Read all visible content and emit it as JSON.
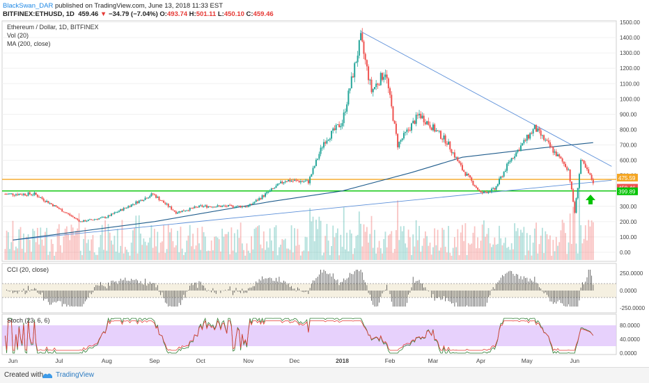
{
  "header": {
    "author": "BlackSwan_DAR",
    "published": "published on TradingView.com, June 13, 2018 11:33 EST",
    "symbol": "BITFINEX:ETHUSD, 1D",
    "last": "459.46",
    "change": "−34.79 (−7.04%)",
    "o_label": "O:",
    "o_val": "493.74",
    "h_label": "H:",
    "h_val": "501.11",
    "l_label": "L:",
    "l_val": "450.10",
    "c_label": "C:",
    "c_val": "459.46"
  },
  "legend": {
    "title": "Ethereum / Dollar, 1D, BITFINEX",
    "vol": "Vol (20)",
    "ma": "MA (200, close)"
  },
  "footer": {
    "created": "Created with",
    "brand": "TradingView"
  },
  "colors": {
    "up": "#26a69a",
    "down": "#ef5350",
    "ma": "#1f5c8c",
    "trend": "#5b8fd9",
    "orange": "#f5a623",
    "green": "#00c300",
    "stochBg": "#e1c6fb"
  },
  "chart_data": [
    {
      "type": "line",
      "title": "Ethereum / Dollar, 1D, BITFINEX",
      "approx_close": [
        [
          "2018-06-01",
          260
        ],
        [
          "2017-06-15",
          380
        ],
        [
          "2017-07-15",
          200
        ],
        [
          "2017-08-01",
          230
        ],
        [
          "2017-08-31",
          380
        ],
        [
          "2017-09-15",
          260
        ],
        [
          "2017-10-01",
          300
        ],
        [
          "2017-11-01",
          300
        ],
        [
          "2017-11-25",
          470
        ],
        [
          "2017-12-10",
          460
        ],
        [
          "2017-12-20",
          720
        ],
        [
          "2018-01-01",
          850
        ],
        [
          "2018-01-13",
          1390
        ],
        [
          "2018-01-20",
          1050
        ],
        [
          "2018-01-29",
          1180
        ],
        [
          "2018-02-06",
          700
        ],
        [
          "2018-02-20",
          900
        ],
        [
          "2018-03-10",
          720
        ],
        [
          "2018-03-20",
          540
        ],
        [
          "2018-04-01",
          385
        ],
        [
          "2018-04-10",
          410
        ],
        [
          "2018-04-20",
          600
        ],
        [
          "2018-05-06",
          810
        ],
        [
          "2018-05-15",
          700
        ],
        [
          "2018-05-28",
          540
        ],
        [
          "2018-06-05",
          600
        ],
        [
          "2018-06-13",
          459.46
        ]
      ],
      "ylim": [
        -50,
        1500
      ],
      "yticks": [
        "1500.00",
        "1400.00",
        "1300.00",
        "1200.00",
        "1100.00",
        "1000.00",
        "900.00",
        "800.00",
        "700.00",
        "600.00",
        "500.00",
        "400.00",
        "300.00",
        "200.00",
        "100.00",
        "0.00"
      ],
      "xticks": [
        "Jun",
        "Jul",
        "Aug",
        "Sep",
        "Oct",
        "Nov",
        "Dec",
        "2018",
        "Feb",
        "Mar",
        "Apr",
        "May",
        "Jun"
      ],
      "price_labels": [
        "475.59",
        "459.46",
        "399.89"
      ],
      "horizontal_levels": [
        475.59,
        399.89
      ],
      "trendlines": [
        {
          "from": [
            "2018-01-13",
            1440
          ],
          "to": [
            "2018-06-25",
            560
          ]
        },
        {
          "from": [
            "2017-06-01",
            80
          ],
          "to": [
            "2018-06-25",
            470
          ]
        }
      ],
      "ma200": [
        [
          "2017-06-01",
          80
        ],
        [
          "2017-09-01",
          200
        ],
        [
          "2017-11-15",
          330
        ],
        [
          "2018-01-01",
          400
        ],
        [
          "2018-02-15",
          520
        ],
        [
          "2018-03-20",
          620
        ],
        [
          "2018-05-10",
          680
        ],
        [
          "2018-06-13",
          715
        ]
      ]
    },
    {
      "type": "bar",
      "title": "CCI (20, close)",
      "yticks": [
        "250.0000",
        "0.0000",
        "-250.0000"
      ],
      "band": [
        100,
        -100
      ]
    },
    {
      "type": "line",
      "title": "Stoch (23, 6, 6)",
      "yticks": [
        "80.0000",
        "40.0000",
        "0.0000"
      ],
      "band": [
        80,
        20
      ]
    }
  ]
}
